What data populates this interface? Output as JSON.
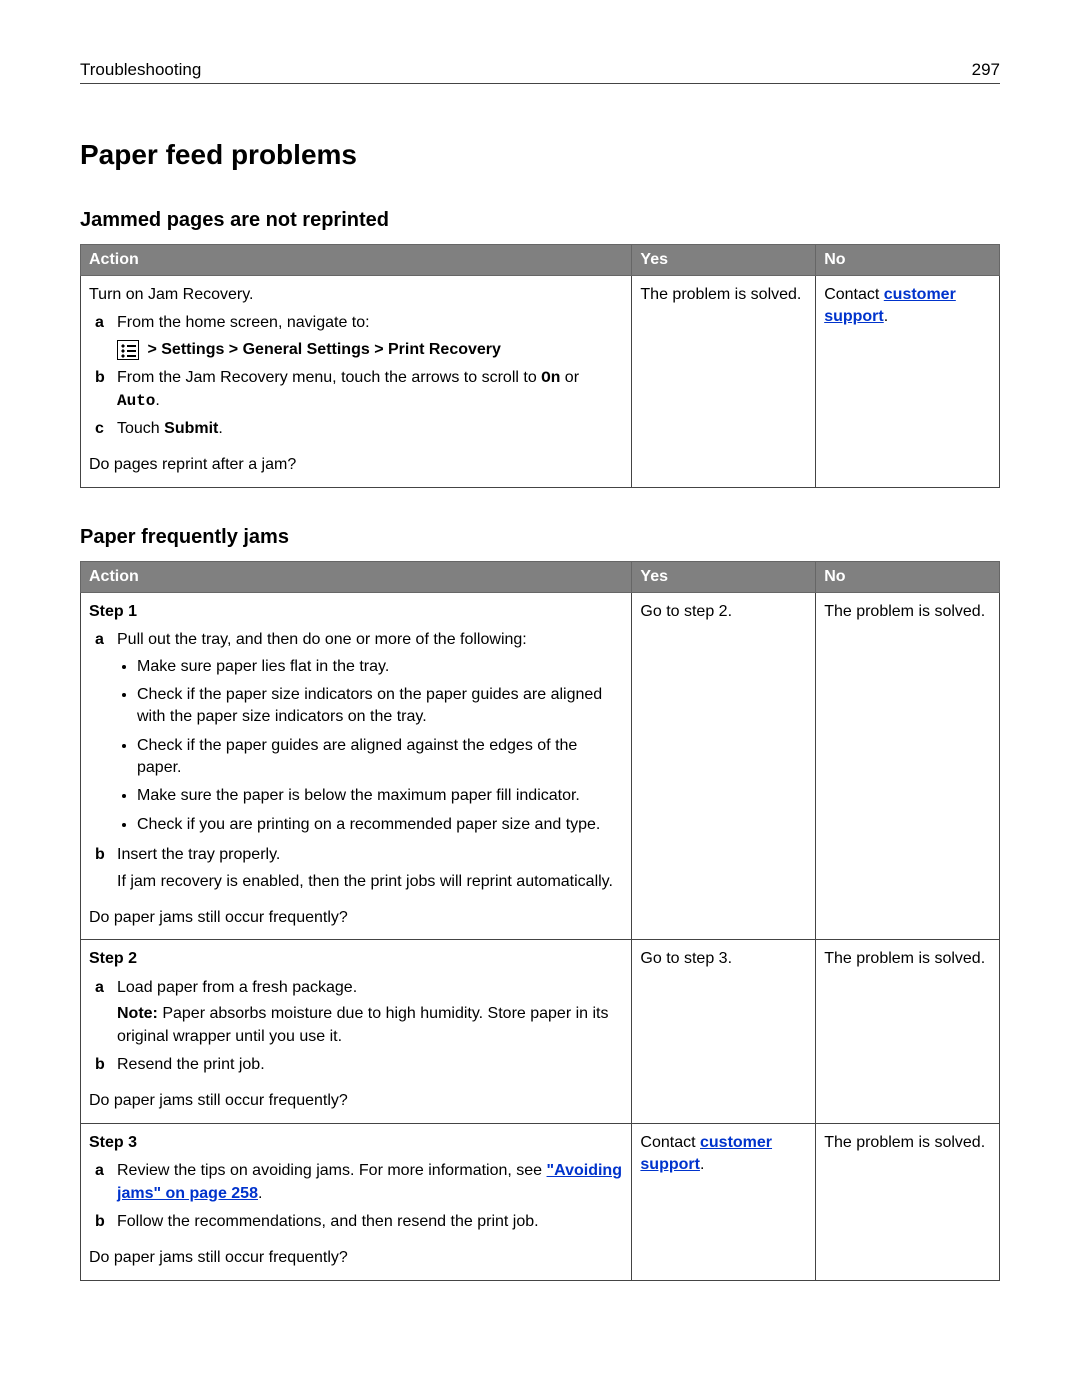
{
  "header": {
    "section": "Troubleshooting",
    "page_number": "297"
  },
  "title": "Paper feed problems",
  "table_headers": {
    "action": "Action",
    "yes": "Yes",
    "no": "No"
  },
  "common": {
    "contact_prefix": "Contact ",
    "customer_support_link": "customer support",
    "period": ".",
    "problem_solved": "The problem is solved."
  },
  "section1": {
    "heading": "Jammed pages are not reprinted",
    "intro": "Turn on Jam Recovery.",
    "a_text": "From the home screen, navigate to:",
    "breadcrumb": " > Settings > General Settings > Print Recovery",
    "b_pre": "From the Jam Recovery menu, touch the arrows to scroll to ",
    "b_on": "On",
    "b_mid": " or ",
    "b_auto": "Auto",
    "b_post": ".",
    "c_pre": "Touch ",
    "c_submit": "Submit",
    "c_post": ".",
    "question": "Do pages reprint after a jam?",
    "yes_text": "The problem is solved."
  },
  "section2": {
    "heading": "Paper frequently jams",
    "step1": {
      "label": "Step 1",
      "a": "Pull out the tray, and then do one or more of the following:",
      "bullets": [
        "Make sure paper lies flat in the tray.",
        "Check if the paper size indicators on the paper guides are aligned with the paper size indicators on the tray.",
        "Check if the paper guides are aligned against the edges of the paper.",
        "Make sure the paper is below the maximum paper fill indicator.",
        "Check if you are printing on a recommended paper size and type."
      ],
      "b": "Insert the tray properly.",
      "b_extra": "If jam recovery is enabled, then the print jobs will reprint automatically.",
      "question": "Do paper jams still occur frequently?",
      "yes_text": "Go to step 2.",
      "no_text": "The problem is solved."
    },
    "step2": {
      "label": "Step 2",
      "a": "Load paper from a fresh package.",
      "note_label": "Note:",
      "note_text": " Paper absorbs moisture due to high humidity. Store paper in its original wrapper until you use it.",
      "b": "Resend the print job.",
      "question": "Do paper jams still occur frequently?",
      "yes_text": "Go to step 3.",
      "no_text": "The problem is solved."
    },
    "step3": {
      "label": "Step 3",
      "a_pre": "Review the tips on avoiding jams. For more information, see ",
      "a_link": "\"Avoiding jams\" on page 258",
      "a_post": ".",
      "b": "Follow the recommendations, and then resend the print job.",
      "question": "Do paper jams still occur frequently?",
      "no_text": "The problem is solved."
    }
  }
}
